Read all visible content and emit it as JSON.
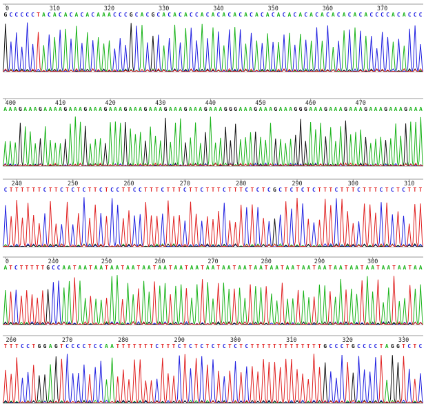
{
  "colors": {
    "A": "#19b319",
    "C": "#2020e0",
    "G": "#101010",
    "T": "#e02020",
    "N": "#e02020",
    "axis": "#9a9a9a"
  },
  "panels": [
    {
      "name": "trace-panel-1",
      "seq": "GCCCCCTACACACACACAAACCCGCACGCACACACCACACACACACACACACACACACACACACACACCCCACACCC",
      "ticks": [
        {
          "label": "0",
          "pos": 0
        },
        {
          "label": "310",
          "pos": 9
        },
        {
          "label": "320",
          "pos": 19
        },
        {
          "label": "330",
          "pos": 29
        },
        {
          "label": "340",
          "pos": 39
        },
        {
          "label": "350",
          "pos": 49
        },
        {
          "label": "360",
          "pos": 59
        },
        {
          "label": "370",
          "pos": 69
        }
      ]
    },
    {
      "name": "trace-panel-2",
      "seq": "AAAGAAAGAAAAGAAAGAAAGAAAGAAAGAAAGAAAGAAAGAAAGGGAAAGAAAGAAAGGGAAAGAAAGAAAGAAAGAAAGAAA",
      "ticks": [
        {
          "label": "400",
          "pos": 0
        },
        {
          "label": "410",
          "pos": 11
        },
        {
          "label": "420",
          "pos": 21
        },
        {
          "label": "430",
          "pos": 31
        },
        {
          "label": "440",
          "pos": 41
        },
        {
          "label": "450",
          "pos": 51
        },
        {
          "label": "460",
          "pos": 61
        },
        {
          "label": "470",
          "pos": 71
        }
      ]
    },
    {
      "name": "trace-panel-3",
      "seq": "CTTTTTTCTTCTCTCTTCTCCTTCCTTTCTTTCTTCTTTCTTTCTCTCGCTCTCTCTTTCTTTCTTTCTCTCTTT",
      "ticks": [
        {
          "label": "240",
          "pos": 2
        },
        {
          "label": "250",
          "pos": 12
        },
        {
          "label": "260",
          "pos": 22
        },
        {
          "label": "270",
          "pos": 32
        },
        {
          "label": "280",
          "pos": 42
        },
        {
          "label": "290",
          "pos": 52
        },
        {
          "label": "300",
          "pos": 62
        },
        {
          "label": "310",
          "pos": 72
        }
      ]
    },
    {
      "name": "trace-panel-4",
      "seq": "ATCTTTTTGCCAATAATAATAATAATAATAATAATAATAATAATAATAATAATAATAATAATAATAATAATAATAATAA",
      "ticks": [
        {
          "label": "0",
          "pos": 0
        },
        {
          "label": "240",
          "pos": 9
        },
        {
          "label": "250",
          "pos": 19
        },
        {
          "label": "260",
          "pos": 29
        },
        {
          "label": "270",
          "pos": 39
        },
        {
          "label": "280",
          "pos": 49
        },
        {
          "label": "290",
          "pos": 59
        },
        {
          "label": "300",
          "pos": 69
        }
      ]
    },
    {
      "name": "trace-panel-5",
      "seq": "TTTCCTGGAGTCCCCTCCAATTTTTTTCTTTCTCTCTCTCTCTCTTTTTTTTTTTTTGCCCTGCCCCTAGGTCTC",
      "ticks": [
        {
          "label": "260",
          "pos": 1
        },
        {
          "label": "270",
          "pos": 11
        },
        {
          "label": "280",
          "pos": 21
        },
        {
          "label": "290",
          "pos": 31
        },
        {
          "label": "300",
          "pos": 41
        },
        {
          "label": "310",
          "pos": 51
        },
        {
          "label": "320",
          "pos": 61
        },
        {
          "label": "330",
          "pos": 71
        }
      ]
    }
  ]
}
